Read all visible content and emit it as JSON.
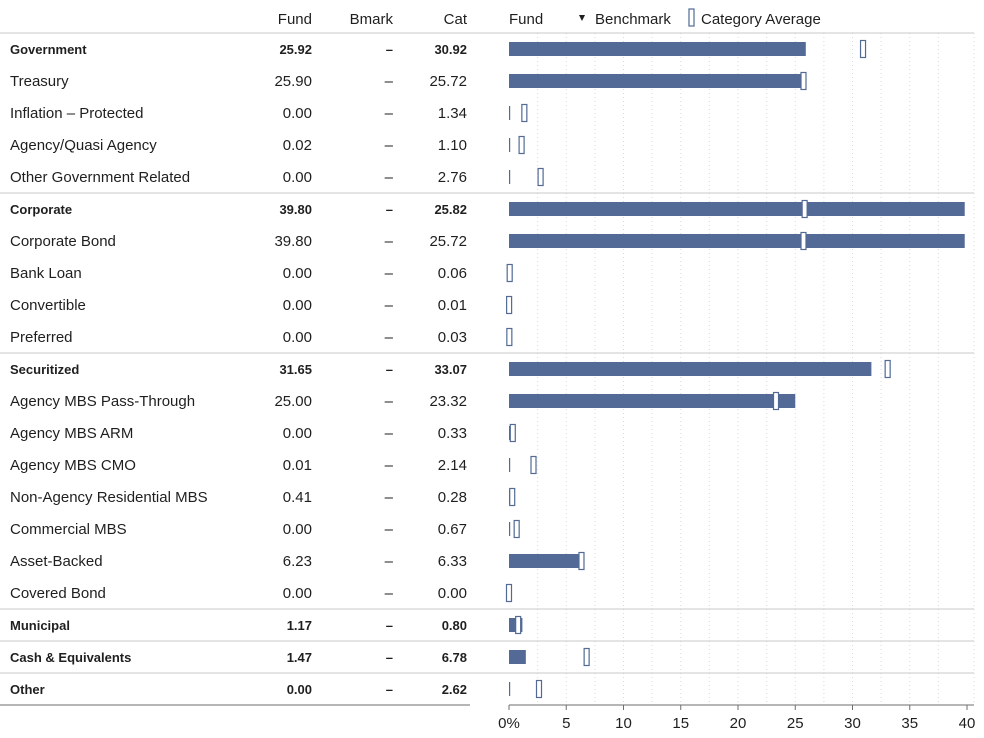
{
  "header": {
    "fund_col": "Fund",
    "bmark_col": "Bmark",
    "cat_col": "Cat",
    "legend_fund": "Fund",
    "legend_benchmark": "Benchmark",
    "legend_category_avg": "Category Average"
  },
  "colors": {
    "fund_bar": "#526a95",
    "category_marker_stroke": "#526a95",
    "benchmark_marker": "#1f1f1f",
    "text": "#1f1f1f",
    "divider": "#c8c8c8",
    "grid": "#d9d9d9"
  },
  "chart_data": {
    "type": "bar",
    "orientation": "horizontal",
    "xlim": [
      0,
      40
    ],
    "x_ticks": [
      "0%",
      "5",
      "10",
      "15",
      "20",
      "25",
      "30",
      "35",
      "40"
    ],
    "grid": true,
    "legend_position": "top",
    "series": [
      {
        "name": "Fund",
        "role": "bar"
      },
      {
        "name": "Benchmark",
        "role": "marker"
      },
      {
        "name": "Category Average",
        "role": "marker"
      }
    ],
    "rows": [
      {
        "label": "Government",
        "bold": true,
        "fund": 25.92,
        "bmark": "–",
        "cat": 30.92
      },
      {
        "label": "Treasury",
        "bold": false,
        "fund": 25.9,
        "bmark": "–",
        "cat": 25.72
      },
      {
        "label": "Inflation – Protected",
        "bold": false,
        "fund": 0.0,
        "bmark": "–",
        "cat": 1.34
      },
      {
        "label": "Agency/Quasi Agency",
        "bold": false,
        "fund": 0.02,
        "bmark": "–",
        "cat": 1.1
      },
      {
        "label": "Other Government Related",
        "bold": false,
        "fund": 0.0,
        "bmark": "–",
        "cat": 2.76
      },
      {
        "label": "Corporate",
        "bold": true,
        "fund": 39.8,
        "bmark": "–",
        "cat": 25.82
      },
      {
        "label": "Corporate Bond",
        "bold": false,
        "fund": 39.8,
        "bmark": "–",
        "cat": 25.72
      },
      {
        "label": "Bank Loan",
        "bold": false,
        "fund": 0.0,
        "bmark": "–",
        "cat": 0.06
      },
      {
        "label": "Convertible",
        "bold": false,
        "fund": 0.0,
        "bmark": "–",
        "cat": 0.01
      },
      {
        "label": "Preferred",
        "bold": false,
        "fund": 0.0,
        "bmark": "–",
        "cat": 0.03
      },
      {
        "label": "Securitized",
        "bold": true,
        "fund": 31.65,
        "bmark": "–",
        "cat": 33.07
      },
      {
        "label": "Agency MBS Pass-Through",
        "bold": false,
        "fund": 25.0,
        "bmark": "–",
        "cat": 23.32
      },
      {
        "label": "Agency MBS ARM",
        "bold": false,
        "fund": 0.0,
        "bmark": "–",
        "cat": 0.33
      },
      {
        "label": "Agency MBS CMO",
        "bold": false,
        "fund": 0.01,
        "bmark": "–",
        "cat": 2.14
      },
      {
        "label": "Non-Agency Residential MBS",
        "bold": false,
        "fund": 0.41,
        "bmark": "–",
        "cat": 0.28
      },
      {
        "label": "Commercial MBS",
        "bold": false,
        "fund": 0.0,
        "bmark": "–",
        "cat": 0.67
      },
      {
        "label": "Asset-Backed",
        "bold": false,
        "fund": 6.23,
        "bmark": "–",
        "cat": 6.33
      },
      {
        "label": "Covered Bond",
        "bold": false,
        "fund": 0.0,
        "bmark": "–",
        "cat": 0.0
      },
      {
        "label": "Municipal",
        "bold": true,
        "fund": 1.17,
        "bmark": "–",
        "cat": 0.8
      },
      {
        "label": "Cash & Equivalents",
        "bold": true,
        "fund": 1.47,
        "bmark": "–",
        "cat": 6.78
      },
      {
        "label": "Other",
        "bold": true,
        "fund": 0.0,
        "bmark": "–",
        "cat": 2.62
      }
    ]
  }
}
